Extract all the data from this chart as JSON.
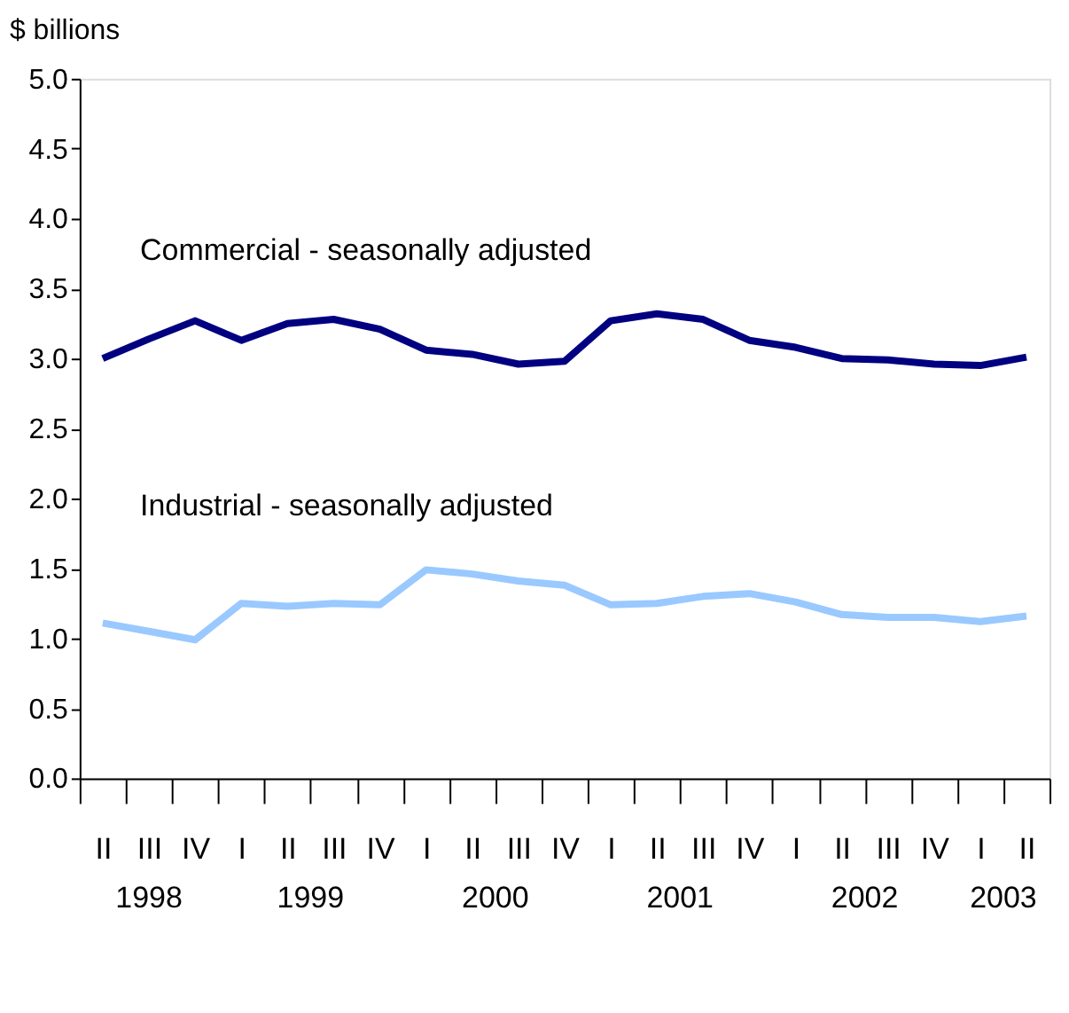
{
  "chart_data": {
    "type": "line",
    "ylabel": "$ billions",
    "categories": [
      "II",
      "III",
      "IV",
      "I",
      "II",
      "III",
      "IV",
      "I",
      "II",
      "III",
      "IV",
      "I",
      "II",
      "III",
      "IV",
      "I",
      "II",
      "III",
      "IV",
      "I",
      "II"
    ],
    "series": [
      {
        "name": "Commercial - seasonally adjusted",
        "color": "#000080",
        "values": [
          3.0,
          3.14,
          3.27,
          3.13,
          3.25,
          3.28,
          3.21,
          3.06,
          3.03,
          2.96,
          2.98,
          3.27,
          3.32,
          3.28,
          3.13,
          3.08,
          3.0,
          2.99,
          2.96,
          2.95,
          3.01
        ]
      },
      {
        "name": "Industrial - seasonally adjusted",
        "color": "#99c9ff",
        "values": [
          1.11,
          1.05,
          0.99,
          1.25,
          1.23,
          1.25,
          1.24,
          1.49,
          1.46,
          1.41,
          1.38,
          1.24,
          1.25,
          1.3,
          1.32,
          1.26,
          1.17,
          1.15,
          1.15,
          1.12,
          1.16
        ]
      }
    ],
    "annotations": [
      "1998",
      "1999",
      "2000",
      "2001",
      "2002",
      "2003"
    ],
    "ylim": [
      0,
      5
    ],
    "yticks": [
      {
        "value": 0,
        "label": "0.0"
      },
      0.5,
      {
        "value": 1,
        "label": "1.0"
      },
      1.5,
      {
        "value": 2,
        "label": "2.0"
      },
      2.5,
      {
        "value": 3,
        "label": "3.0"
      },
      3.5,
      {
        "value": 4,
        "label": "4.0"
      },
      4.5,
      {
        "value": 5,
        "label": "5.0"
      }
    ],
    "grid": false,
    "legend": false,
    "marker": "none",
    "line_style": "solid"
  }
}
